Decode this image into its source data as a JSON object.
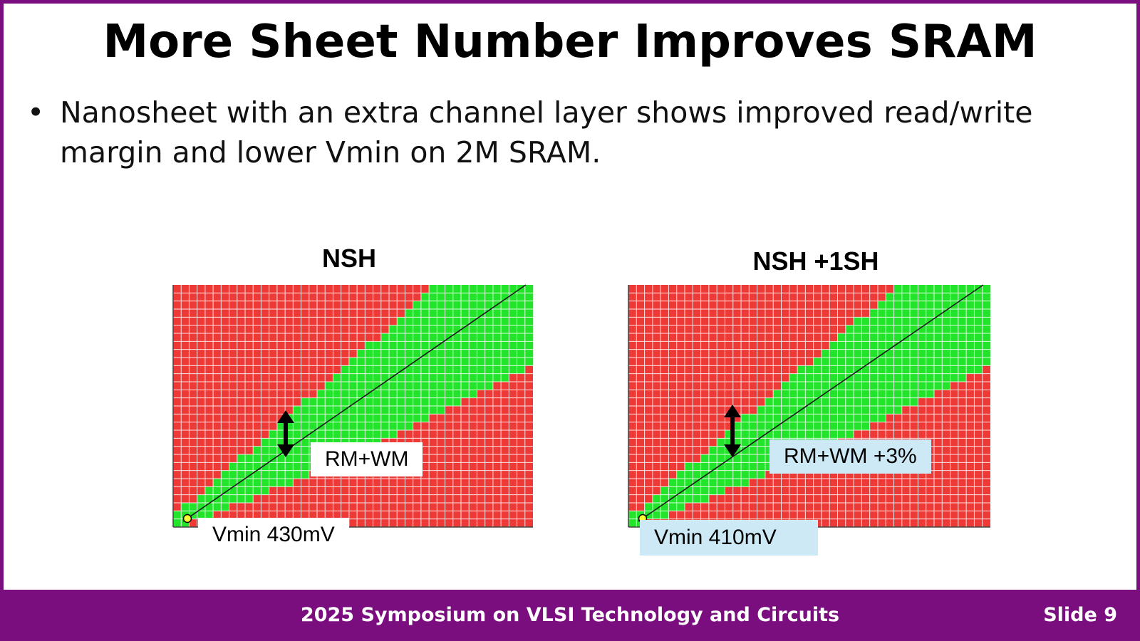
{
  "slide": {
    "title": "More Sheet Number Improves SRAM",
    "bullet_marker": "•",
    "bullet": "Nanosheet with an extra channel layer shows improved read/write margin and lower Vmin on 2M SRAM."
  },
  "colors": {
    "frame": "#7a0e7f",
    "fail": "#ee3a36",
    "pass": "#22e42a",
    "grid": "#ffffff",
    "label_blue": "#cde9f6"
  },
  "chart_data": [
    {
      "type": "heatmap",
      "title": "NSH",
      "xlabel": "",
      "ylabel": "",
      "grid_cols": 45,
      "grid_rows": 30,
      "pass_band": {
        "upper_start": 0.04,
        "upper_end": 1.35,
        "lower_start": 0.0,
        "lower_end": 0.66
      },
      "annotations": {
        "margin_label": "RM+WM",
        "vmin_label": "Vmin 430mV"
      }
    },
    {
      "type": "heatmap",
      "title": "NSH +1SH",
      "xlabel": "",
      "ylabel": "",
      "grid_cols": 45,
      "grid_rows": 30,
      "pass_band": {
        "upper_start": 0.04,
        "upper_end": 1.32,
        "lower_start": 0.0,
        "lower_end": 0.66
      },
      "annotations": {
        "margin_label": "RM+WM +3%",
        "vmin_label": "Vmin 410mV"
      }
    }
  ],
  "footer": {
    "conference": "2025 Symposium on VLSI Technology and Circuits",
    "slide_number": "Slide 9"
  }
}
